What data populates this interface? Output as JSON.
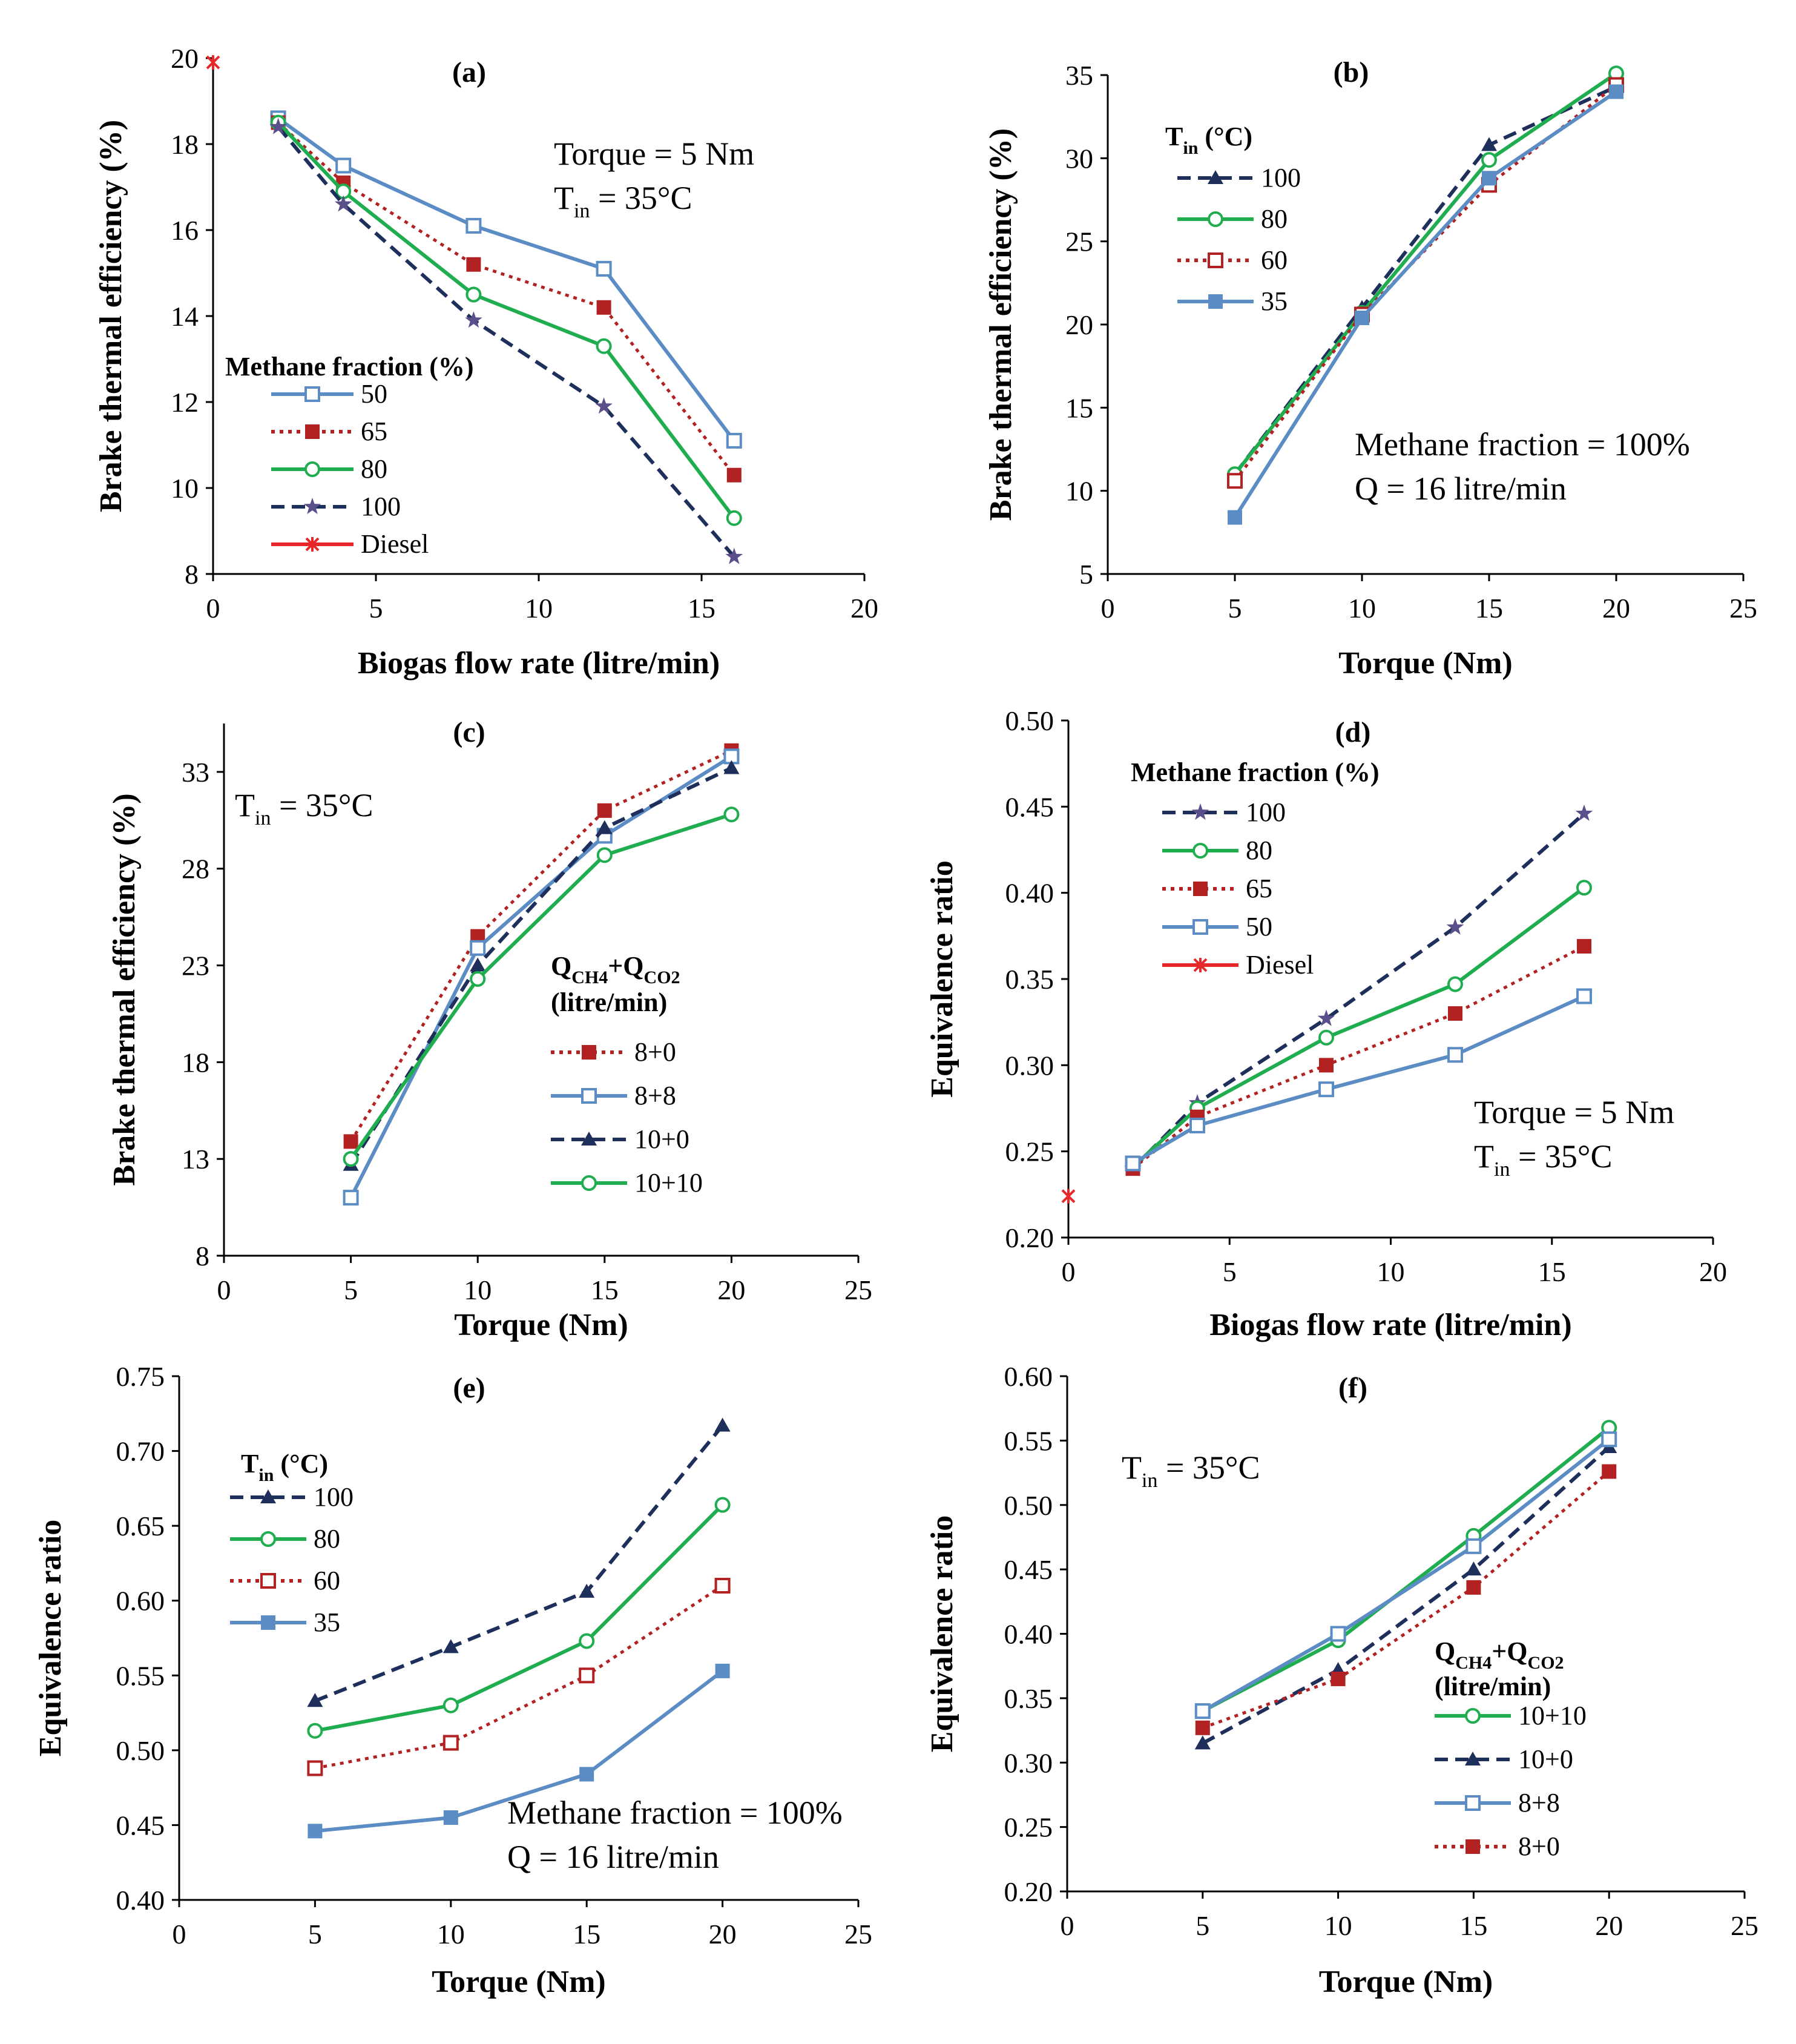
{
  "chart_data": [
    {
      "id": "a",
      "type": "line",
      "title": "(a)",
      "xlabel": "Biogas flow rate (litre/min)",
      "ylabel": "Brake thermal efficiency (%)",
      "xlim": [
        0,
        20
      ],
      "ylim": [
        8,
        20
      ],
      "xticks": [
        "0",
        "5",
        "10",
        "15",
        "20"
      ],
      "yticks": [
        "8",
        "10",
        "12",
        "14",
        "16",
        "18",
        "20"
      ],
      "annotations": [
        {
          "text": "Torque = 5 Nm"
        },
        {
          "text": "T",
          "sub": "in",
          "rest": " = 35°C"
        }
      ],
      "legend_title": "Methane fraction  (%)",
      "series": [
        {
          "name": "50",
          "x": [
            2,
            4,
            8,
            12,
            16
          ],
          "y": [
            18.6,
            17.5,
            16.1,
            15.1,
            11.1
          ],
          "color": "#5b8cc4",
          "marker": "square-open",
          "dash": "solid"
        },
        {
          "name": "65",
          "x": [
            2,
            4,
            8,
            12,
            16
          ],
          "y": [
            18.5,
            17.1,
            15.2,
            14.2,
            10.3
          ],
          "color": "#b22222",
          "marker": "square-filled",
          "dash": "dotted"
        },
        {
          "name": "80",
          "x": [
            2,
            4,
            8,
            12,
            16
          ],
          "y": [
            18.5,
            16.9,
            14.5,
            13.3,
            9.3
          ],
          "color": "#1fad4f",
          "marker": "circle-open",
          "dash": "solid"
        },
        {
          "name": "100",
          "x": [
            2,
            4,
            8,
            12,
            16
          ],
          "y": [
            18.4,
            16.6,
            13.9,
            11.9,
            8.4
          ],
          "color": "#1f2f5c",
          "marker": "star",
          "dash": "dashed"
        },
        {
          "name": "Diesel",
          "x": [
            0
          ],
          "y": [
            19.9
          ],
          "color": "#e8272a",
          "marker": "x",
          "dash": "solid"
        }
      ]
    },
    {
      "id": "b",
      "type": "line",
      "title": "(b)",
      "xlabel": "Torque (Nm)",
      "ylabel": "Brake thermal efficiency (%)",
      "xlim": [
        0,
        25
      ],
      "ylim": [
        5,
        35
      ],
      "xticks": [
        "0",
        "5",
        "10",
        "15",
        "20",
        "25"
      ],
      "yticks": [
        "5",
        "10",
        "15",
        "20",
        "25",
        "30",
        "35"
      ],
      "annotations": [
        {
          "text": "Methane fraction = 100%"
        },
        {
          "text": "Q = 16 litre/min"
        }
      ],
      "legend_title": "T",
      "legend_title_sub": "in",
      "legend_title_rest": " (°C)",
      "series": [
        {
          "name": "100",
          "x": [
            5,
            10,
            15,
            20
          ],
          "y": [
            11.0,
            21.0,
            30.8,
            34.3
          ],
          "color": "#1f2f5c",
          "marker": "triangle",
          "dash": "dashed"
        },
        {
          "name": "80",
          "x": [
            5,
            10,
            15,
            20
          ],
          "y": [
            11.0,
            20.7,
            29.9,
            35.1
          ],
          "color": "#1fad4f",
          "marker": "circle-open",
          "dash": "solid"
        },
        {
          "name": "60",
          "x": [
            5,
            10,
            15,
            20
          ],
          "y": [
            10.6,
            20.6,
            28.4,
            34.4
          ],
          "color": "#b22222",
          "marker": "square-open",
          "dash": "dotted"
        },
        {
          "name": "35",
          "x": [
            5,
            10,
            15,
            20
          ],
          "y": [
            8.4,
            20.4,
            28.8,
            34.0
          ],
          "color": "#5b8cc4",
          "marker": "square-filled",
          "dash": "solid"
        }
      ]
    },
    {
      "id": "c",
      "type": "line",
      "title": "(c)",
      "xlabel": "Torque (Nm)",
      "ylabel": "Brake thermal efficiency (%)",
      "xlim": [
        0,
        25
      ],
      "ylim": [
        8,
        35.5
      ],
      "xticks": [
        "0",
        "5",
        "10",
        "15",
        "20",
        "25"
      ],
      "yticks": [
        "8",
        "13",
        "18",
        "23",
        "28",
        "33"
      ],
      "ytick_values": [
        8,
        13,
        18,
        23,
        28,
        33
      ],
      "annotations": [
        {
          "text": "T",
          "sub": "in",
          "rest": " = 35°C"
        }
      ],
      "legend_title": "Q",
      "legend_title_sub1": "CH4",
      "legend_title_mid": "+Q",
      "legend_title_sub2": "CO2",
      "legend_title_line2": "(litre/min)",
      "series": [
        {
          "name": "8+0",
          "x": [
            5,
            10,
            15,
            20
          ],
          "y": [
            13.9,
            24.5,
            31.0,
            34.1
          ],
          "color": "#b22222",
          "marker": "square-filled",
          "dash": "dotted"
        },
        {
          "name": "8+8",
          "x": [
            5,
            10,
            15,
            20
          ],
          "y": [
            11.0,
            23.9,
            29.7,
            33.8
          ],
          "color": "#5b8cc4",
          "marker": "square-open",
          "dash": "solid"
        },
        {
          "name": "10+0",
          "x": [
            5,
            10,
            15,
            20
          ],
          "y": [
            12.7,
            23.0,
            30.1,
            33.2
          ],
          "color": "#1f2f5c",
          "marker": "triangle",
          "dash": "dashed"
        },
        {
          "name": "10+10",
          "x": [
            5,
            10,
            15,
            20
          ],
          "y": [
            13.0,
            22.3,
            28.7,
            30.8
          ],
          "color": "#1fad4f",
          "marker": "circle-open",
          "dash": "solid"
        }
      ]
    },
    {
      "id": "d",
      "type": "line",
      "title": "(d)",
      "xlabel": "Biogas flow rate (litre/min)",
      "ylabel": "Equivalence ratio",
      "xlim": [
        0,
        20
      ],
      "ylim": [
        0.2,
        0.5
      ],
      "xticks": [
        "0",
        "5",
        "10",
        "15",
        "20"
      ],
      "yticks": [
        "0.20",
        "0.25",
        "0.30",
        "0.35",
        "0.40",
        "0.45",
        "0.50"
      ],
      "annotations": [
        {
          "text": "Torque = 5 Nm"
        },
        {
          "text": "T",
          "sub": "in",
          "rest": " = 35°C"
        }
      ],
      "legend_title": "Methane fraction (%)",
      "series": [
        {
          "name": "100",
          "x": [
            2,
            4,
            8,
            12,
            16
          ],
          "y": [
            0.24,
            0.278,
            0.327,
            0.38,
            0.446
          ],
          "color": "#1f2f5c",
          "marker": "star",
          "dash": "dashed"
        },
        {
          "name": "80",
          "x": [
            2,
            4,
            8,
            12,
            16
          ],
          "y": [
            0.241,
            0.275,
            0.316,
            0.347,
            0.403
          ],
          "color": "#1fad4f",
          "marker": "circle-open",
          "dash": "solid"
        },
        {
          "name": "65",
          "x": [
            2,
            4,
            8,
            12,
            16
          ],
          "y": [
            0.24,
            0.27,
            0.3,
            0.33,
            0.369
          ],
          "color": "#b22222",
          "marker": "square-filled",
          "dash": "dotted"
        },
        {
          "name": "50",
          "x": [
            2,
            4,
            8,
            12,
            16
          ],
          "y": [
            0.243,
            0.265,
            0.286,
            0.306,
            0.34
          ],
          "color": "#5b8cc4",
          "marker": "square-open",
          "dash": "solid"
        },
        {
          "name": "Diesel",
          "x": [
            0
          ],
          "y": [
            0.224
          ],
          "color": "#e8272a",
          "marker": "x",
          "dash": "solid"
        }
      ]
    },
    {
      "id": "e",
      "type": "line",
      "title": "(e)",
      "xlabel": "Torque (Nm)",
      "ylabel": "Equivalence ratio",
      "xlim": [
        0,
        25
      ],
      "ylim": [
        0.4,
        0.75
      ],
      "xticks": [
        "0",
        "5",
        "10",
        "15",
        "20",
        "25"
      ],
      "yticks": [
        "0.40",
        "0.45",
        "0.50",
        "0.55",
        "0.60",
        "0.65",
        "0.70",
        "0.75"
      ],
      "annotations": [
        {
          "text": "Methane fraction = 100%"
        },
        {
          "text": "Q = 16 litre/min"
        }
      ],
      "legend_title": "T",
      "legend_title_sub": "in",
      "legend_title_rest": " (°C)",
      "series": [
        {
          "name": "100",
          "x": [
            5,
            10,
            15,
            20
          ],
          "y": [
            0.533,
            0.569,
            0.606,
            0.717
          ],
          "color": "#1f2f5c",
          "marker": "triangle",
          "dash": "dashed"
        },
        {
          "name": "80",
          "x": [
            5,
            10,
            15,
            20
          ],
          "y": [
            0.513,
            0.53,
            0.573,
            0.664
          ],
          "color": "#1fad4f",
          "marker": "circle-open",
          "dash": "solid"
        },
        {
          "name": "60",
          "x": [
            5,
            10,
            15,
            20
          ],
          "y": [
            0.488,
            0.505,
            0.55,
            0.61
          ],
          "color": "#b22222",
          "marker": "square-open",
          "dash": "dotted"
        },
        {
          "name": "35",
          "x": [
            5,
            10,
            15,
            20
          ],
          "y": [
            0.446,
            0.455,
            0.484,
            0.553
          ],
          "color": "#5b8cc4",
          "marker": "square-filled",
          "dash": "solid"
        }
      ]
    },
    {
      "id": "f",
      "type": "line",
      "title": "(f)",
      "xlabel": "Torque (Nm)",
      "ylabel": "Equivalence ratio",
      "xlim": [
        0,
        25
      ],
      "ylim": [
        0.2,
        0.6
      ],
      "xticks": [
        "0",
        "5",
        "10",
        "15",
        "20",
        "25"
      ],
      "yticks": [
        "0.20",
        "0.25",
        "0.30",
        "0.35",
        "0.40",
        "0.45",
        "0.50",
        "0.55",
        "0.60"
      ],
      "annotations": [
        {
          "text": "T",
          "sub": "in",
          "rest": " = 35°C"
        }
      ],
      "legend_title": "Q",
      "legend_title_sub1": "CH4",
      "legend_title_mid": "+Q",
      "legend_title_sub2": "CO2",
      "legend_title_line2": "(litre/min)",
      "series": [
        {
          "name": "10+10",
          "x": [
            5,
            10,
            15,
            20
          ],
          "y": [
            0.34,
            0.395,
            0.476,
            0.56
          ],
          "color": "#1fad4f",
          "marker": "circle-open",
          "dash": "solid"
        },
        {
          "name": "10+0",
          "x": [
            5,
            10,
            15,
            20
          ],
          "y": [
            0.315,
            0.372,
            0.45,
            0.545
          ],
          "color": "#1f2f5c",
          "marker": "triangle",
          "dash": "dashed"
        },
        {
          "name": "8+8",
          "x": [
            5,
            10,
            15,
            20
          ],
          "y": [
            0.34,
            0.4,
            0.468,
            0.551
          ],
          "color": "#5b8cc4",
          "marker": "square-open",
          "dash": "solid"
        },
        {
          "name": "8+0",
          "x": [
            5,
            10,
            15,
            20
          ],
          "y": [
            0.327,
            0.365,
            0.436,
            0.526
          ],
          "color": "#b22222",
          "marker": "square-filled",
          "dash": "dotted"
        }
      ]
    }
  ]
}
